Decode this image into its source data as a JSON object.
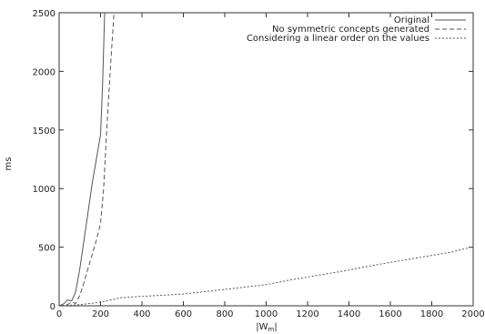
{
  "chart_data": {
    "type": "line",
    "title": "",
    "xlabel": "|W_m|",
    "xlabel_main": "|W",
    "xlabel_sub": "m",
    "xlabel_end": "|",
    "ylabel": "ms",
    "xlim": [
      0,
      2000
    ],
    "ylim": [
      0,
      2500
    ],
    "xticks": [
      0,
      200,
      400,
      600,
      800,
      1000,
      1200,
      1400,
      1600,
      1800,
      2000
    ],
    "yticks": [
      0,
      500,
      1000,
      1500,
      2000,
      2500
    ],
    "grid": false,
    "legend_position": "top-right",
    "series": [
      {
        "name": "Original",
        "style": "solid",
        "color": "#555555",
        "x": [
          0,
          25,
          40,
          60,
          80,
          100,
          120,
          140,
          160,
          180,
          200,
          210,
          220
        ],
        "y": [
          0,
          20,
          50,
          40,
          120,
          320,
          560,
          800,
          1050,
          1250,
          1460,
          1900,
          2500
        ]
      },
      {
        "name": "No symmetric concepts generated",
        "style": "dashed",
        "color": "#555555",
        "x": [
          0,
          40,
          60,
          80,
          100,
          120,
          140,
          160,
          180,
          200,
          215,
          230,
          250,
          265
        ],
        "y": [
          0,
          10,
          30,
          20,
          90,
          200,
          320,
          440,
          560,
          700,
          1000,
          1500,
          2100,
          2500
        ]
      },
      {
        "name": "Considering a linear order on the values",
        "style": "dotted",
        "color": "#555555",
        "x": [
          0,
          100,
          200,
          300,
          400,
          500,
          600,
          700,
          800,
          900,
          1000,
          1100,
          1200,
          1300,
          1400,
          1500,
          1600,
          1700,
          1800,
          1900,
          2000
        ],
        "y": [
          0,
          10,
          30,
          70,
          80,
          90,
          100,
          120,
          140,
          160,
          180,
          215,
          245,
          275,
          305,
          340,
          370,
          400,
          430,
          460,
          505
        ]
      }
    ]
  }
}
